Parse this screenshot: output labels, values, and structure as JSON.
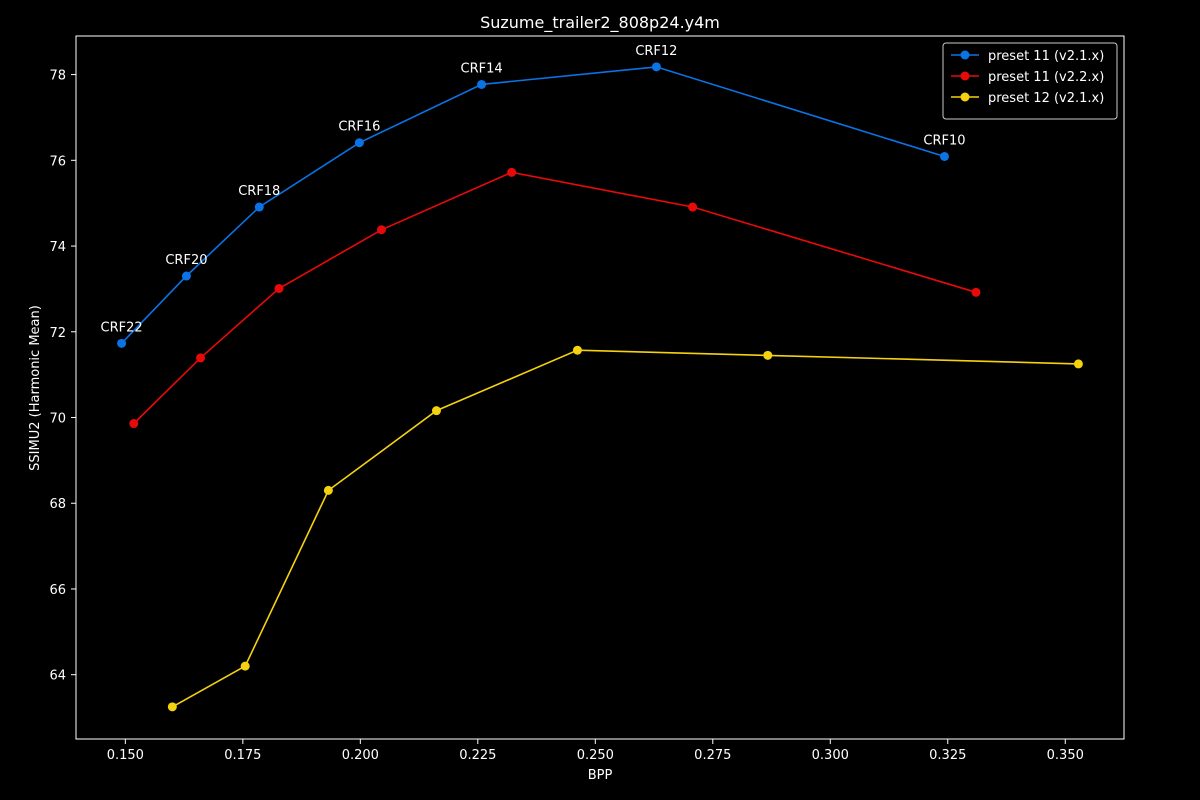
{
  "chart_data": {
    "type": "line",
    "title": "Suzume_trailer2_808p24.y4m",
    "xlabel": "BPP",
    "ylabel": "SSIMU2 (Harmonic Mean)",
    "xlim": [
      0.1395,
      0.3625
    ],
    "ylim": [
      62.5,
      78.9
    ],
    "x_ticks": [
      0.15,
      0.175,
      0.2,
      0.225,
      0.25,
      0.275,
      0.3,
      0.325,
      0.35
    ],
    "x_tick_labels": [
      "0.150",
      "0.175",
      "0.200",
      "0.225",
      "0.250",
      "0.275",
      "0.300",
      "0.325",
      "0.350"
    ],
    "y_ticks": [
      64,
      66,
      68,
      70,
      72,
      74,
      76,
      78
    ],
    "y_tick_labels": [
      "64",
      "66",
      "68",
      "70",
      "72",
      "74",
      "76",
      "78"
    ],
    "grid": false,
    "legend_position": "top-right",
    "background": "#000000",
    "axis_color": "#ffffff",
    "series": [
      {
        "name": "preset 11 (v2.1.x)",
        "color": "#0a74e6",
        "x": [
          0.1492,
          0.163,
          0.1785,
          0.1998,
          0.2258,
          0.263,
          0.3243
        ],
        "y": [
          71.73,
          73.3,
          74.91,
          76.41,
          77.77,
          78.18,
          76.09
        ]
      },
      {
        "name": "preset 11 (v2.2.x)",
        "color": "#e80a0a",
        "x": [
          0.1518,
          0.166,
          0.1827,
          0.2045,
          0.2322,
          0.2707,
          0.331
        ],
        "y": [
          69.86,
          71.39,
          73.01,
          74.38,
          75.72,
          74.91,
          72.92
        ]
      },
      {
        "name": "preset 12 (v2.1.x)",
        "color": "#f5d20f",
        "x": [
          0.16,
          0.1755,
          0.1932,
          0.2162,
          0.2462,
          0.2867,
          0.3528
        ],
        "y": [
          63.25,
          64.2,
          68.3,
          70.16,
          71.57,
          71.45,
          71.25
        ]
      }
    ],
    "annotations": [
      {
        "text": "CRF22",
        "x": 0.1492,
        "y": 71.73
      },
      {
        "text": "CRF20",
        "x": 0.163,
        "y": 73.3
      },
      {
        "text": "CRF18",
        "x": 0.1785,
        "y": 74.91
      },
      {
        "text": "CRF16",
        "x": 0.1998,
        "y": 76.41
      },
      {
        "text": "CRF14",
        "x": 0.2258,
        "y": 77.77
      },
      {
        "text": "CRF12",
        "x": 0.263,
        "y": 78.18
      },
      {
        "text": "CRF10",
        "x": 0.3243,
        "y": 76.09
      }
    ]
  }
}
